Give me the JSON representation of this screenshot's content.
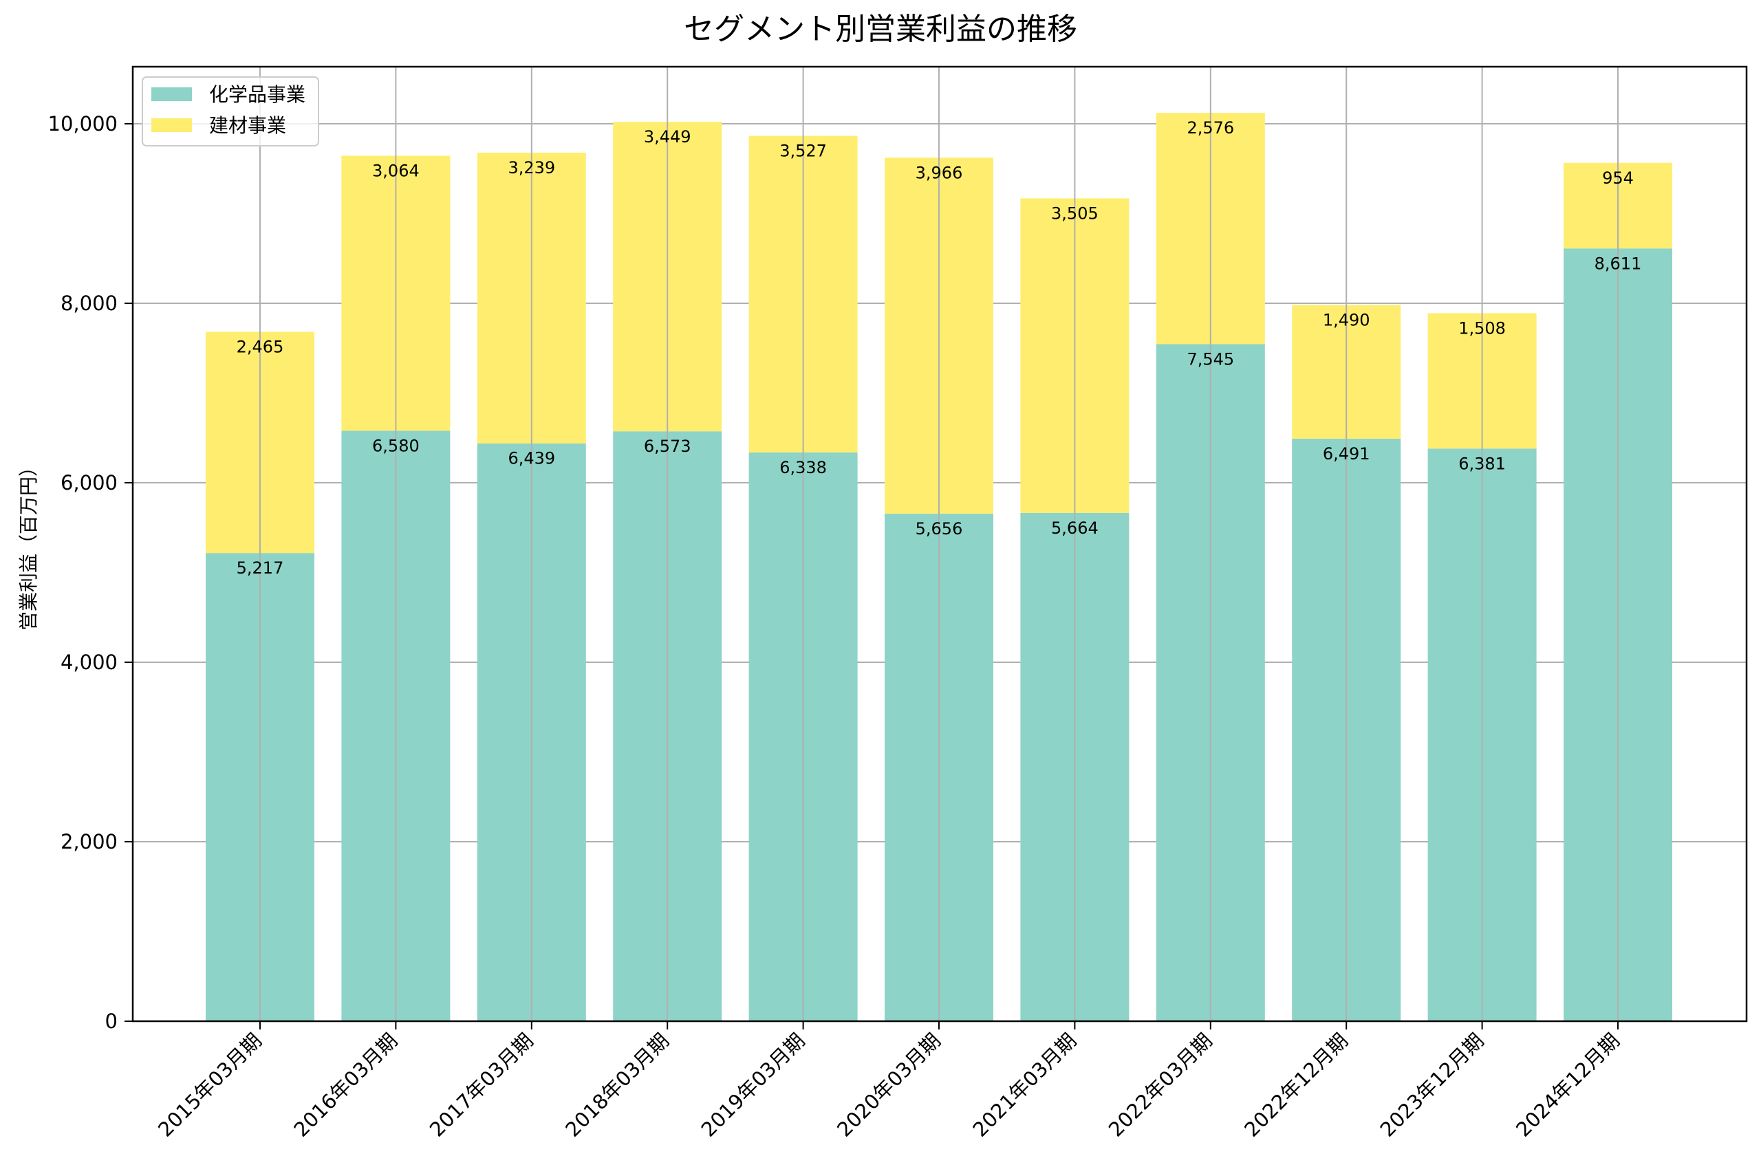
{
  "chart_data": {
    "type": "bar",
    "stacked": true,
    "title": "セグメント別営業利益の推移",
    "xlabel": "",
    "ylabel": "営業利益（百万円）",
    "ylim": [
      0,
      10636
    ],
    "yticks": [
      0,
      2000,
      4000,
      6000,
      8000,
      10000
    ],
    "ytick_labels": [
      "0",
      "2,000",
      "4,000",
      "6,000",
      "8,000",
      "10,000"
    ],
    "grid": true,
    "legend_position": "upper left",
    "categories": [
      "2015年03月期",
      "2016年03月期",
      "2017年03月期",
      "2018年03月期",
      "2019年03月期",
      "2020年03月期",
      "2021年03月期",
      "2022年03月期",
      "2022年12月期",
      "2023年12月期",
      "2024年12月期"
    ],
    "series": [
      {
        "name": "化学品事業",
        "color": "#8ed3c7",
        "values": [
          5217,
          6580,
          6439,
          6573,
          6338,
          5656,
          5664,
          7545,
          6491,
          6381,
          8611
        ],
        "labels": [
          "5,217",
          "6,580",
          "6,439",
          "6,573",
          "6,338",
          "5,656",
          "5,664",
          "7,545",
          "6,491",
          "6,381",
          "8,611"
        ]
      },
      {
        "name": "建材事業",
        "color": "#ffed6f",
        "values": [
          2465,
          3064,
          3239,
          3449,
          3527,
          3966,
          3505,
          2576,
          1490,
          1508,
          954
        ],
        "labels": [
          "2,465",
          "3,064",
          "3,239",
          "3,449",
          "3,527",
          "3,966",
          "3,505",
          "2,576",
          "1,490",
          "1,508",
          "954"
        ]
      }
    ]
  },
  "title": "セグメント別営業利益の推移",
  "ylabel": "営業利益（百万円）",
  "legend": {
    "items": [
      {
        "label": "化学品事業",
        "color": "#8ed3c7"
      },
      {
        "label": "建材事業",
        "color": "#ffed6f"
      }
    ]
  },
  "colors": {
    "grid": "#b0b0b0",
    "axis": "#000000",
    "legend_border": "#cccccc"
  }
}
